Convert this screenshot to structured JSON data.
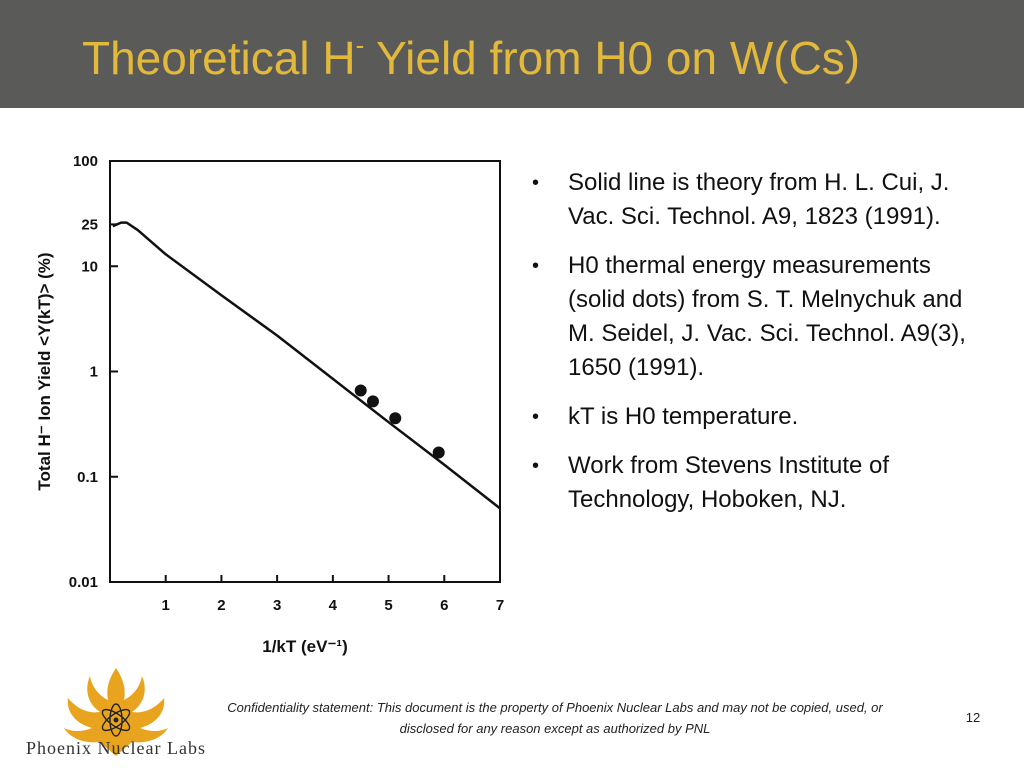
{
  "slide": {
    "title_main": "Theoretical H",
    "title_sup": "-",
    "title_rest": " Yield from H0 on W(Cs)",
    "bullets": [
      "Solid line is theory from H. L. Cui, J. Vac. Sci. Technol. A9, 1823 (1991).",
      "H0 thermal energy measurements (solid dots) from S. T. Melnychuk and M. Seidel, J. Vac. Sci. Technol. A9(3), 1650 (1991).",
      "kT is H0 temperature.",
      "Work from Stevens Institute of Technology, Hoboken, NJ."
    ],
    "bullet_symbol": "•",
    "footer": "Confidentiality statement: This document is the property of Phoenix Nuclear Labs and may not be copied, used, or disclosed for any reason except as authorized by PNL",
    "page_number": "12",
    "logo_text": "Phoenix Nuclear Labs",
    "colors": {
      "title_bar": "#5a5a58",
      "title_text": "#e3b93b",
      "logo": "#e8a41f"
    }
  },
  "chart_data": {
    "type": "line",
    "xlabel": "1/kT (eV⁻¹)",
    "ylabel": "Total H⁻ Ion Yield <Y(kT)> (%)",
    "xlim": [
      0,
      7
    ],
    "ylim": [
      0.01,
      100
    ],
    "y_scale": "log",
    "x_ticks": [
      1,
      2,
      3,
      4,
      5,
      6,
      7
    ],
    "x_tick_labels": [
      "1",
      "2",
      "3",
      "4",
      "5",
      "6",
      "7"
    ],
    "y_ticks": [
      0.01,
      0.1,
      1,
      10,
      25,
      100
    ],
    "y_tick_labels": [
      "0.01",
      "0.1",
      "1",
      "10",
      "25",
      "100"
    ],
    "grid": false,
    "series": [
      {
        "style": "solid-line",
        "x": [
          0.05,
          0.2,
          0.3,
          0.5,
          1.0,
          2.0,
          3.0,
          4.0,
          5.0,
          6.0,
          7.0
        ],
        "y": [
          24,
          26,
          26,
          22,
          13,
          5.3,
          2.2,
          0.85,
          0.33,
          0.13,
          0.05
        ]
      },
      {
        "style": "dots",
        "x": [
          4.5,
          4.72,
          5.12,
          5.9
        ],
        "y": [
          0.66,
          0.52,
          0.36,
          0.17
        ]
      }
    ]
  }
}
